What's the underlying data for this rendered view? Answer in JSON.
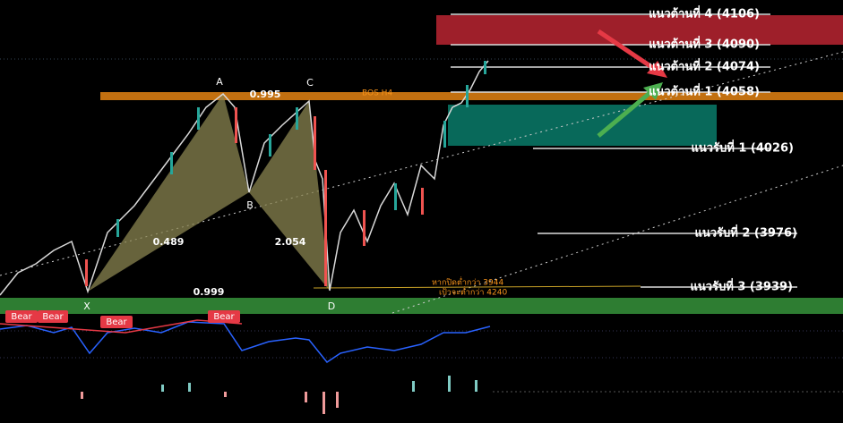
{
  "resistance": [
    "แนวต้านที่ 4 (4106)",
    "แนวต้านที่ 3 (4090)",
    "แนวต้านที่ 2 (4074)",
    "แนวต้านที่ 1 (4058)"
  ],
  "support": [
    "แนวรับที่ 1 (4026)",
    "แนวรับที่ 2 (3976)",
    "แนวรับที่ 3 (3939)"
  ],
  "pattern": {
    "points": [
      "X",
      "A",
      "B",
      "C",
      "D"
    ],
    "ratios": [
      "0.995",
      "0.489",
      "2.054",
      "0.999"
    ]
  },
  "annotations": {
    "bos": "BOS H4",
    "note_close": "หากปิดต่ำกว่า 3944",
    "note_target": "เป้าจะต่ำกว่า 4240"
  },
  "badges": [
    "Bear",
    "Bear",
    "Bear",
    "Bear"
  ]
}
